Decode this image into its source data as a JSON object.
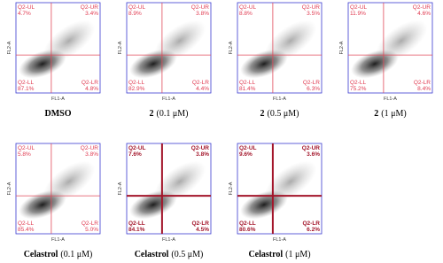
{
  "axis_labels": {
    "x": "FL1-A",
    "y": "FL2-A"
  },
  "quadrant_names": {
    "ul": "Q2-UL",
    "ur": "Q2-UR",
    "ll": "Q2-LL",
    "lr": "Q2-LR"
  },
  "panels": [
    {
      "caption": {
        "bold": "DMSO"
      },
      "gate_color": "#e04a5a",
      "ul": "4.7%",
      "ur": "3.4%",
      "ll": "87.1%",
      "lr": "4.8%"
    },
    {
      "caption": {
        "bold": "2",
        "rest": "(0.1 μM)"
      },
      "gate_color": "#e04a5a",
      "ul": "8.9%",
      "ur": "3.8%",
      "ll": "82.9%",
      "lr": "4.4%"
    },
    {
      "caption": {
        "bold": "2",
        "rest": "(0.5 μM)"
      },
      "gate_color": "#e04a5a",
      "ul": "8.8%",
      "ur": "3.5%",
      "ll": "81.4%",
      "lr": "6.3%"
    },
    {
      "caption": {
        "bold": "2",
        "rest": "(1 μM)"
      },
      "gate_color": "#e04a5a",
      "ul": "11.9%",
      "ur": "4.6%",
      "ll": "75.2%",
      "lr": "8.4%"
    },
    {
      "caption": {
        "bold": "Celastrol",
        "rest": "(0.1 μM)"
      },
      "gate_color": "#e04a5a",
      "ul": "5.8%",
      "ur": "3.8%",
      "ll": "85.4%",
      "lr": "5.0%"
    },
    {
      "caption": {
        "bold": "Celastrol",
        "rest": "(0.5 μM)"
      },
      "gate_color": "#a3152a",
      "ul": "7.6%",
      "ur": "3.8%",
      "ll": "84.1%",
      "lr": "4.5%"
    },
    {
      "caption": {
        "bold": "Celastrol",
        "rest": "(1 μM)"
      },
      "gate_color": "#a3152a",
      "ul": "9.6%",
      "ur": "3.6%",
      "ll": "80.6%",
      "lr": "6.2%"
    }
  ]
}
